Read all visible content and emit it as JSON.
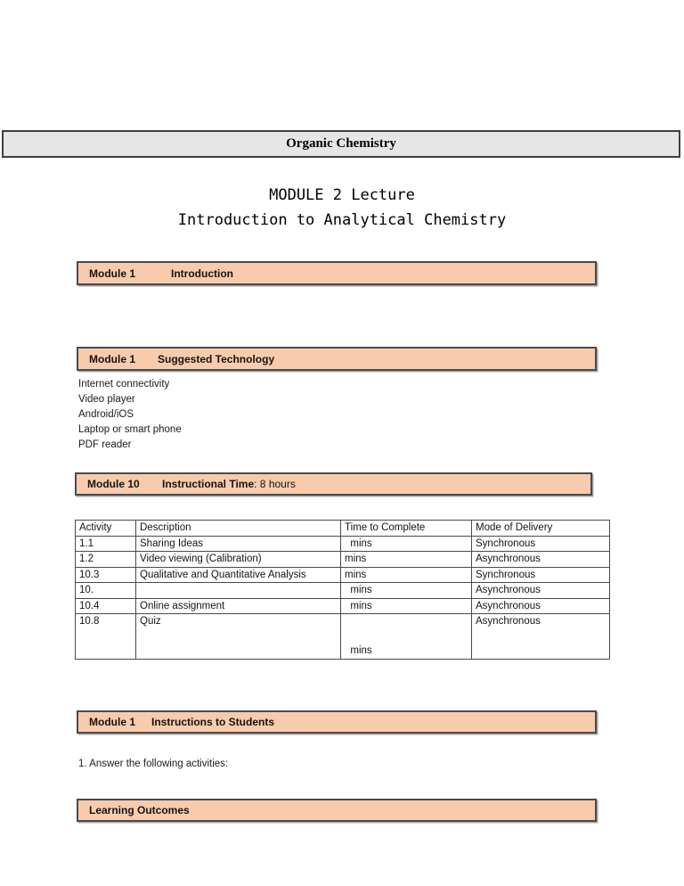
{
  "course": {
    "title": "Organic Chemistry"
  },
  "doc_title": {
    "line1": "MODULE 2 Lecture",
    "line2": "Introduction to Analytical Chemistry"
  },
  "banners": {
    "intro": {
      "label": "Module 1",
      "title": "Introduction"
    },
    "technology": {
      "label": "Module 1",
      "title": "Suggested Technology"
    },
    "time": {
      "label": "Module 10",
      "title_bold": "Instructional Time",
      "title_rest": ": 8 hours"
    },
    "instructions": {
      "label": "Module 1",
      "title": "Instructions to Students"
    },
    "outcomes": {
      "title": "Learning Outcomes"
    }
  },
  "technology_list": {
    "items": [
      "Internet connectivity",
      "Video player",
      "Android/iOS",
      "Laptop or smart phone",
      "PDF reader"
    ]
  },
  "table": {
    "headers": [
      "Activity",
      "Description",
      "Time to Complete",
      "Mode of Delivery"
    ],
    "rows": [
      [
        "1.1",
        "Sharing Ideas",
        "  mins",
        "Synchronous"
      ],
      [
        "1.2",
        "Video viewing (Calibration)",
        "mins",
        "Asynchronous"
      ],
      [
        "10.3",
        "Qualitative and Quantitative Analysis",
        "mins",
        "Synchronous"
      ],
      [
        "10.",
        "",
        "  mins",
        "Asynchronous"
      ],
      [
        "10.4",
        "Online assignment",
        "  mins",
        "Asynchronous"
      ],
      [
        "10.8",
        "Quiz",
        "\n\n  mins",
        "Asynchronous"
      ]
    ]
  },
  "instructions": {
    "text": "1. Answer the following activities:"
  },
  "colors": {
    "banner_fill": "#F8CBAD",
    "banner_border": "#4a4a4a",
    "header_fill": "#E7E6E6",
    "header_border": "#3f3f3f",
    "table_border": "#4a4a4a"
  }
}
